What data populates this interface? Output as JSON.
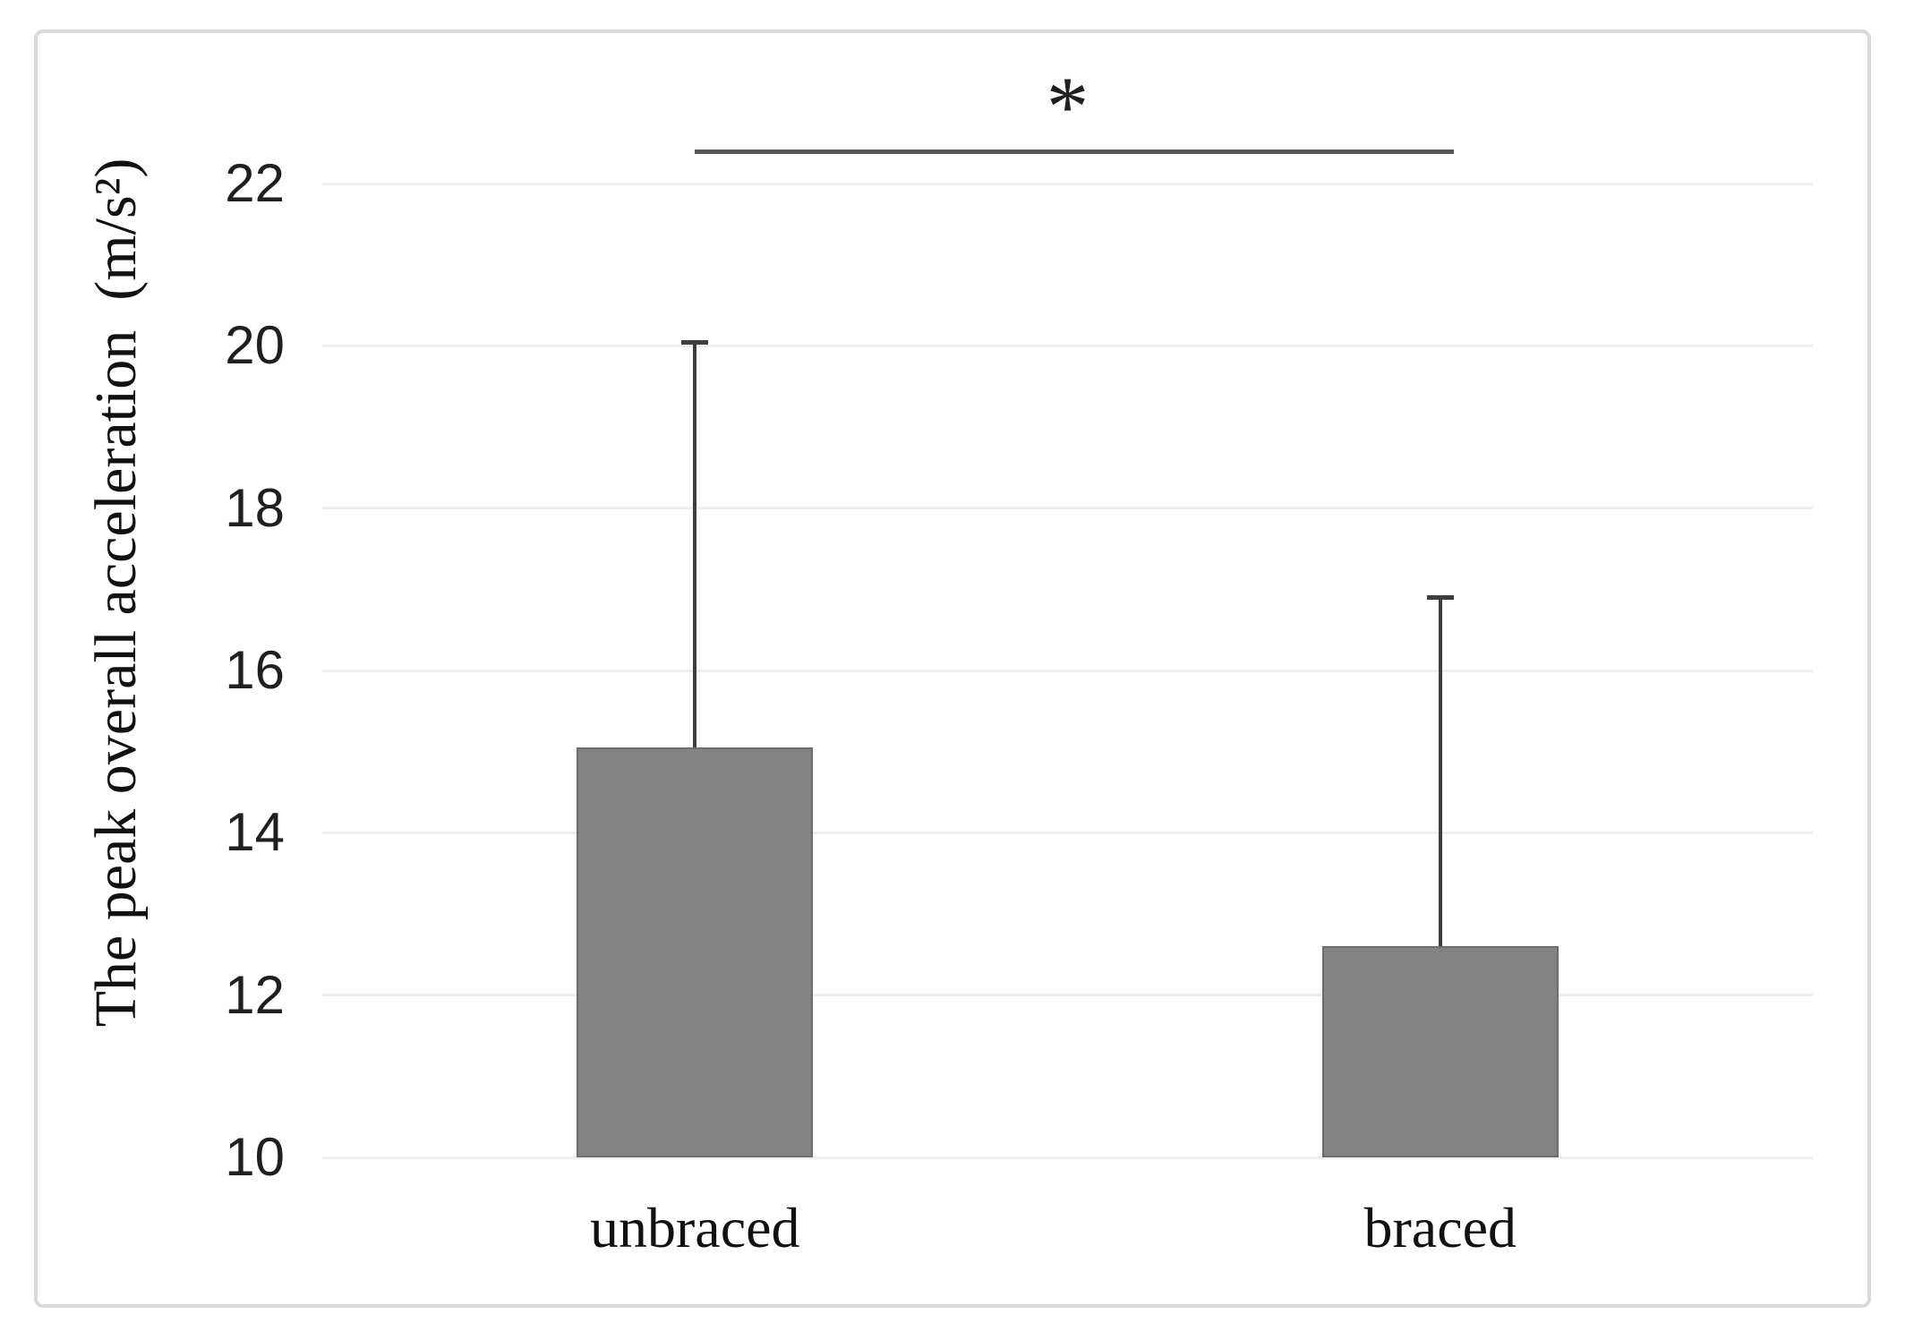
{
  "figure": {
    "background": "#ffffff",
    "border_color": "#d9d9d9"
  },
  "chart_data": {
    "type": "bar",
    "title": "",
    "xlabel": "",
    "ylabel": "The peak overall acceleration  (m/s²)",
    "categories": [
      "unbraced",
      "braced"
    ],
    "values": [
      15.05,
      12.6
    ],
    "errors_upper": [
      5.0,
      4.3
    ],
    "ylim": [
      10,
      22
    ],
    "yticks": [
      10,
      12,
      14,
      16,
      18,
      20,
      22
    ],
    "grid": true,
    "legend_position": "none",
    "bar_color": "#838383",
    "bar_border_color": "#6d6d6d",
    "error_bar_color": "#3d3d3d",
    "gridline_color": "#eeeeee",
    "tick_label_color": "#1f1f1f",
    "significance": {
      "label": "*",
      "between": [
        "unbraced",
        "braced"
      ],
      "line_color": "#595959"
    }
  }
}
